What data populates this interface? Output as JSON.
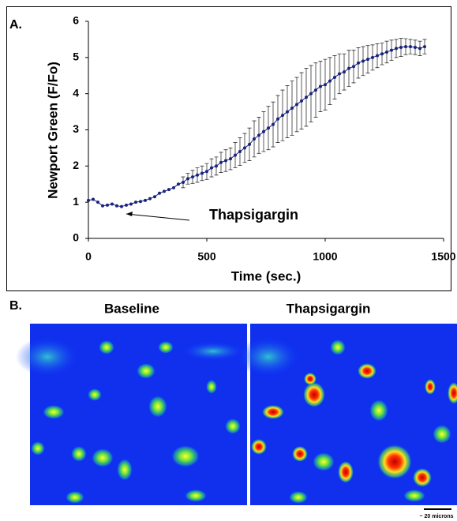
{
  "chart_data": {
    "type": "scatter",
    "panel_label": "A.",
    "x_label": "Time (sec.)",
    "y_label": "Newport Green (F/Fo)",
    "annotation": "Thapsigargin",
    "xlim": [
      0,
      1500
    ],
    "xticks": [
      0,
      500,
      1000,
      1500
    ],
    "ylim": [
      0,
      6
    ],
    "yticks": [
      0,
      1,
      2,
      3,
      4,
      5,
      6
    ],
    "color": "#1a237e",
    "x": [
      0,
      20,
      40,
      60,
      80,
      100,
      120,
      140,
      160,
      180,
      200,
      220,
      240,
      260,
      280,
      300,
      320,
      340,
      360,
      380,
      400,
      420,
      440,
      460,
      480,
      500,
      520,
      540,
      560,
      580,
      600,
      620,
      640,
      660,
      680,
      700,
      720,
      740,
      760,
      780,
      800,
      820,
      840,
      860,
      880,
      900,
      920,
      940,
      960,
      980,
      1000,
      1020,
      1040,
      1060,
      1080,
      1100,
      1120,
      1140,
      1160,
      1180,
      1200,
      1220,
      1240,
      1260,
      1280,
      1300,
      1320,
      1340,
      1360,
      1380,
      1400,
      1420
    ],
    "values": [
      1.05,
      1.08,
      1.0,
      0.9,
      0.92,
      0.95,
      0.9,
      0.88,
      0.92,
      0.95,
      1.0,
      1.02,
      1.05,
      1.1,
      1.15,
      1.25,
      1.3,
      1.35,
      1.4,
      1.5,
      1.55,
      1.65,
      1.7,
      1.75,
      1.8,
      1.85,
      1.95,
      2.0,
      2.1,
      2.15,
      2.2,
      2.3,
      2.4,
      2.5,
      2.6,
      2.75,
      2.85,
      2.95,
      3.05,
      3.15,
      3.3,
      3.4,
      3.5,
      3.6,
      3.7,
      3.8,
      3.9,
      4.0,
      4.1,
      4.2,
      4.25,
      4.35,
      4.45,
      4.55,
      4.6,
      4.7,
      4.75,
      4.85,
      4.9,
      4.95,
      5.0,
      5.05,
      5.1,
      5.15,
      5.2,
      5.25,
      5.28,
      5.3,
      5.3,
      5.28,
      5.25,
      5.3
    ],
    "errors": [
      null,
      null,
      null,
      null,
      null,
      null,
      null,
      null,
      null,
      null,
      null,
      null,
      null,
      null,
      null,
      null,
      null,
      null,
      null,
      null,
      0.15,
      0.15,
      0.18,
      0.2,
      0.2,
      0.22,
      0.25,
      0.25,
      0.28,
      0.3,
      0.3,
      0.35,
      0.38,
      0.4,
      0.45,
      0.5,
      0.5,
      0.55,
      0.6,
      0.62,
      0.65,
      0.7,
      0.72,
      0.75,
      0.75,
      0.78,
      0.8,
      0.78,
      0.75,
      0.7,
      0.7,
      0.65,
      0.6,
      0.55,
      0.5,
      0.5,
      0.45,
      0.42,
      0.4,
      0.38,
      0.35,
      0.33,
      0.3,
      0.3,
      0.28,
      0.25,
      0.25,
      0.22,
      0.2,
      0.2,
      0.2,
      0.2
    ]
  },
  "panel_b": {
    "label": "B.",
    "images": [
      {
        "title": "Baseline"
      },
      {
        "title": "Thapsigargin"
      }
    ],
    "scale_bar": "~ 20 microns"
  }
}
